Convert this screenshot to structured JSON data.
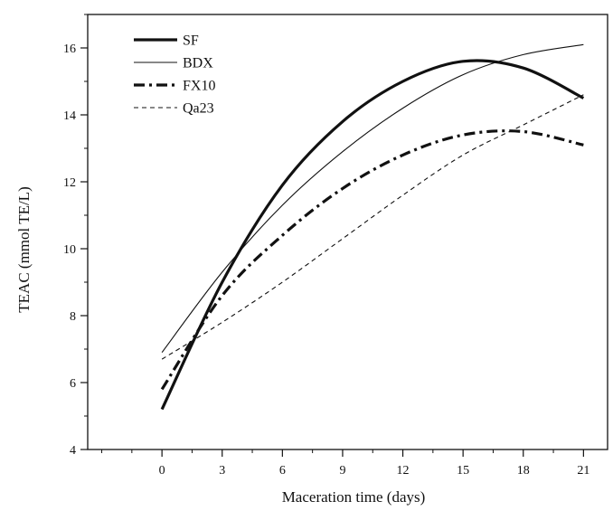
{
  "chart_data": {
    "type": "line",
    "title": "",
    "xlabel": "Maceration time (days)",
    "ylabel": "TEAC (mmol TE/L)",
    "xlim": [
      -3.7,
      22.2
    ],
    "ylim": [
      4,
      17
    ],
    "xticks": [
      0,
      3,
      6,
      9,
      12,
      15,
      18,
      21
    ],
    "yticks": [
      4,
      6,
      8,
      10,
      12,
      14,
      16
    ],
    "xtick_labels": [
      "0",
      "3",
      "6",
      "9",
      "12",
      "15",
      "18",
      "21"
    ],
    "ytick_labels": [
      "4",
      "6",
      "8",
      "10",
      "12",
      "14",
      "16"
    ],
    "grid": false,
    "legend_position": "top-left",
    "x": [
      0,
      3,
      6,
      9,
      12,
      15,
      18,
      21
    ],
    "series": [
      {
        "name": "SF",
        "line_style": "solid",
        "line_weight": "thick",
        "values": [
          5.2,
          9.0,
          11.9,
          13.8,
          15.0,
          15.6,
          15.4,
          14.5
        ]
      },
      {
        "name": "BDX",
        "line_style": "solid",
        "line_weight": "thin",
        "values": [
          6.9,
          9.3,
          11.3,
          12.9,
          14.2,
          15.2,
          15.8,
          16.1
        ]
      },
      {
        "name": "FX10",
        "line_style": "dash-dot",
        "line_weight": "thick",
        "values": [
          5.8,
          8.6,
          10.4,
          11.8,
          12.8,
          13.4,
          13.5,
          13.1
        ]
      },
      {
        "name": "Qa23",
        "line_style": "dashed",
        "line_weight": "thin",
        "values": [
          6.7,
          7.8,
          9.0,
          10.3,
          11.6,
          12.8,
          13.7,
          14.6
        ]
      }
    ]
  },
  "colors": {
    "line": "#111111",
    "background": "#ffffff"
  }
}
